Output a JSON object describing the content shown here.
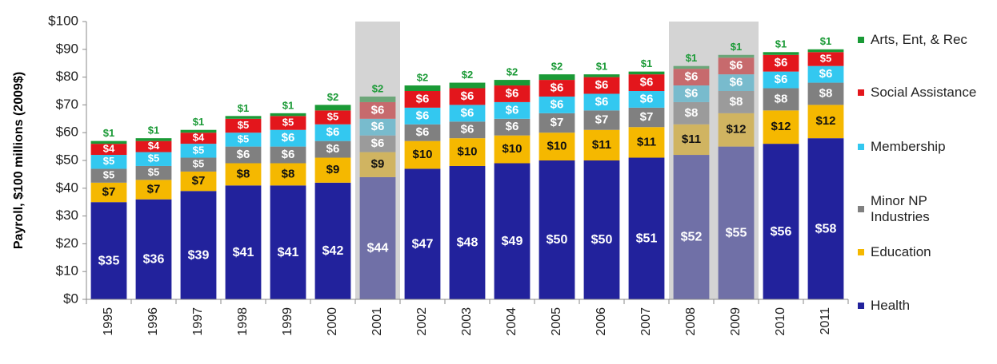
{
  "chart_data": {
    "type": "stacked_bar",
    "y_label": "Payroll, $100 millions (2009$)",
    "categories": [
      "1995",
      "1996",
      "1997",
      "1998",
      "1999",
      "2000",
      "2001",
      "2002",
      "2003",
      "2004",
      "2005",
      "2006",
      "2007",
      "2008",
      "2009",
      "2010",
      "2011"
    ],
    "shaded_categories": [
      "2001",
      "2008",
      "2009"
    ],
    "series": [
      {
        "name": "Health",
        "color": "#22229c",
        "values": [
          35,
          36,
          39,
          41,
          41,
          42,
          44,
          47,
          48,
          49,
          50,
          50,
          51,
          52,
          55,
          56,
          58
        ],
        "value_labels": [
          "$35",
          "$36",
          "$39",
          "$41",
          "$41",
          "$42",
          "$44",
          "$47",
          "$48",
          "$49",
          "$50",
          "$50",
          "$51",
          "$52",
          "$55",
          "$56",
          "$58"
        ]
      },
      {
        "name": "Education",
        "color": "#f5b800",
        "values": [
          7,
          7,
          7,
          8,
          8,
          9,
          9,
          10,
          10,
          10,
          10,
          11,
          11,
          11,
          12,
          12,
          12
        ],
        "value_labels": [
          "$7",
          "$7",
          "$7",
          "$8",
          "$8",
          "$9",
          "$9",
          "$10",
          "$10",
          "$10",
          "$10",
          "$11",
          "$11",
          "$11",
          "$12",
          "$12",
          "$12"
        ]
      },
      {
        "name": "Minor NP Industries",
        "color": "#808080",
        "values": [
          5,
          5,
          5,
          6,
          6,
          6,
          6,
          6,
          6,
          6,
          7,
          7,
          7,
          8,
          8,
          8,
          8
        ],
        "value_labels": [
          "$5",
          "$5",
          "$5",
          "$6",
          "$6",
          "$6",
          "$6",
          "$6",
          "$6",
          "$6",
          "$7",
          "$7",
          "$7",
          "$8",
          "$8",
          "$8",
          "$8"
        ]
      },
      {
        "name": "Membership",
        "color": "#33c8f0",
        "values": [
          5,
          5,
          5,
          5,
          6,
          6,
          6,
          6,
          6,
          6,
          6,
          6,
          6,
          6,
          6,
          6,
          6
        ],
        "value_labels": [
          "$5",
          "$5",
          "$5",
          "$5",
          "$6",
          "$6",
          "$6",
          "$6",
          "$6",
          "$6",
          "$6",
          "$6",
          "$6",
          "$6",
          "$6",
          "$6",
          "$6"
        ]
      },
      {
        "name": "Social Assistance",
        "color": "#e3161c",
        "values": [
          4,
          4,
          4,
          5,
          5,
          5,
          6,
          6,
          6,
          6,
          6,
          6,
          6,
          6,
          6,
          6,
          5
        ],
        "value_labels": [
          "$4",
          "$4",
          "$4",
          "$5",
          "$5",
          "$5",
          "$6",
          "$6",
          "$6",
          "$6",
          "$6",
          "$6",
          "$6",
          "$6",
          "$6",
          "$6",
          "$5"
        ]
      },
      {
        "name": "Arts, Ent, & Rec",
        "color": "#1a9a36",
        "values": [
          1,
          1,
          1,
          1,
          1,
          2,
          2,
          2,
          2,
          2,
          2,
          1,
          1,
          1,
          1,
          1,
          1
        ],
        "value_labels": [
          "$1",
          "$1",
          "$1",
          "$1",
          "$1",
          "$2",
          "$2",
          "$2",
          "$2",
          "$2",
          "$2",
          "$1",
          "$1",
          "$1",
          "$1",
          "$1",
          "$1"
        ]
      }
    ],
    "ylim": [
      0,
      100
    ],
    "yticks": [
      {
        "value": 0,
        "label": "$0"
      },
      {
        "value": 10,
        "label": "$10"
      },
      {
        "value": 20,
        "label": "$20"
      },
      {
        "value": 30,
        "label": "$30"
      },
      {
        "value": 40,
        "label": "$40"
      },
      {
        "value": 50,
        "label": "$50"
      },
      {
        "value": 60,
        "label": "$60"
      },
      {
        "value": 70,
        "label": "$70"
      },
      {
        "value": 80,
        "label": "$80"
      },
      {
        "value": 90,
        "label": "$90"
      },
      {
        "value": 100,
        "label": "$100"
      }
    ],
    "legend": "right"
  }
}
